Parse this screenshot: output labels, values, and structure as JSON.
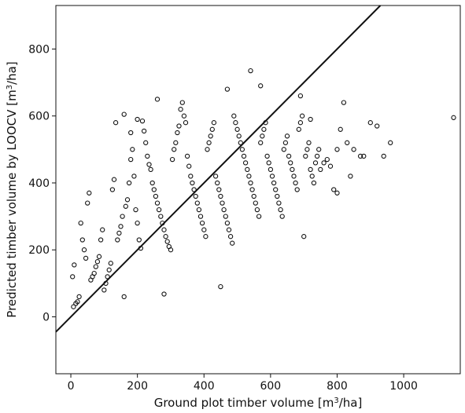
{
  "chart_data": {
    "type": "scatter",
    "xlabel": {
      "pre": "Ground plot timber volume [m",
      "sup": "3",
      "post": "/ha]"
    },
    "ylabel": {
      "pre": "Predicted timber volume by LOOCV [m",
      "sup": "3",
      "post": "/ha]"
    },
    "xlim": [
      -45,
      1170
    ],
    "ylim": [
      -170,
      930
    ],
    "xticks": [
      0,
      200,
      400,
      600,
      800,
      1000
    ],
    "yticks": [
      0,
      200,
      400,
      600,
      800
    ],
    "grid": false,
    "reference_line": {
      "x1": -45,
      "y1": -45,
      "x2": 930,
      "y2": 930
    },
    "points": [
      [
        5,
        120
      ],
      [
        10,
        155
      ],
      [
        8,
        30
      ],
      [
        15,
        40
      ],
      [
        20,
        45
      ],
      [
        25,
        60
      ],
      [
        30,
        280
      ],
      [
        35,
        230
      ],
      [
        40,
        200
      ],
      [
        45,
        175
      ],
      [
        50,
        340
      ],
      [
        55,
        370
      ],
      [
        60,
        110
      ],
      [
        65,
        120
      ],
      [
        70,
        130
      ],
      [
        75,
        150
      ],
      [
        80,
        165
      ],
      [
        85,
        180
      ],
      [
        90,
        230
      ],
      [
        95,
        260
      ],
      [
        100,
        80
      ],
      [
        105,
        100
      ],
      [
        110,
        120
      ],
      [
        115,
        140
      ],
      [
        120,
        160
      ],
      [
        125,
        380
      ],
      [
        130,
        410
      ],
      [
        135,
        580
      ],
      [
        140,
        230
      ],
      [
        145,
        250
      ],
      [
        150,
        270
      ],
      [
        155,
        300
      ],
      [
        160,
        60
      ],
      [
        165,
        330
      ],
      [
        170,
        350
      ],
      [
        175,
        400
      ],
      [
        180,
        470
      ],
      [
        185,
        500
      ],
      [
        190,
        420
      ],
      [
        195,
        320
      ],
      [
        200,
        280
      ],
      [
        205,
        230
      ],
      [
        210,
        205
      ],
      [
        215,
        585
      ],
      [
        220,
        555
      ],
      [
        225,
        520
      ],
      [
        230,
        480
      ],
      [
        235,
        455
      ],
      [
        240,
        440
      ],
      [
        245,
        400
      ],
      [
        250,
        380
      ],
      [
        255,
        360
      ],
      [
        260,
        340
      ],
      [
        265,
        320
      ],
      [
        270,
        300
      ],
      [
        275,
        280
      ],
      [
        280,
        260
      ],
      [
        285,
        240
      ],
      [
        290,
        225
      ],
      [
        295,
        210
      ],
      [
        300,
        200
      ],
      [
        305,
        470
      ],
      [
        310,
        500
      ],
      [
        315,
        520
      ],
      [
        320,
        550
      ],
      [
        325,
        570
      ],
      [
        330,
        620
      ],
      [
        335,
        640
      ],
      [
        340,
        600
      ],
      [
        345,
        580
      ],
      [
        350,
        480
      ],
      [
        355,
        450
      ],
      [
        360,
        420
      ],
      [
        365,
        400
      ],
      [
        370,
        380
      ],
      [
        375,
        360
      ],
      [
        380,
        340
      ],
      [
        385,
        320
      ],
      [
        390,
        300
      ],
      [
        395,
        280
      ],
      [
        400,
        260
      ],
      [
        405,
        240
      ],
      [
        410,
        500
      ],
      [
        415,
        520
      ],
      [
        420,
        540
      ],
      [
        425,
        560
      ],
      [
        430,
        580
      ],
      [
        435,
        420
      ],
      [
        440,
        400
      ],
      [
        445,
        380
      ],
      [
        450,
        360
      ],
      [
        455,
        340
      ],
      [
        460,
        320
      ],
      [
        465,
        300
      ],
      [
        470,
        280
      ],
      [
        475,
        260
      ],
      [
        480,
        240
      ],
      [
        485,
        220
      ],
      [
        490,
        600
      ],
      [
        495,
        580
      ],
      [
        500,
        560
      ],
      [
        505,
        540
      ],
      [
        510,
        520
      ],
      [
        515,
        500
      ],
      [
        520,
        480
      ],
      [
        525,
        460
      ],
      [
        530,
        440
      ],
      [
        535,
        420
      ],
      [
        540,
        400
      ],
      [
        545,
        380
      ],
      [
        550,
        360
      ],
      [
        555,
        340
      ],
      [
        560,
        320
      ],
      [
        565,
        300
      ],
      [
        570,
        520
      ],
      [
        575,
        540
      ],
      [
        580,
        560
      ],
      [
        585,
        580
      ],
      [
        590,
        480
      ],
      [
        595,
        460
      ],
      [
        600,
        440
      ],
      [
        605,
        420
      ],
      [
        610,
        400
      ],
      [
        615,
        380
      ],
      [
        620,
        360
      ],
      [
        625,
        340
      ],
      [
        630,
        320
      ],
      [
        635,
        300
      ],
      [
        640,
        500
      ],
      [
        645,
        520
      ],
      [
        650,
        540
      ],
      [
        655,
        480
      ],
      [
        660,
        460
      ],
      [
        665,
        440
      ],
      [
        670,
        420
      ],
      [
        675,
        400
      ],
      [
        680,
        380
      ],
      [
        685,
        560
      ],
      [
        690,
        580
      ],
      [
        695,
        600
      ],
      [
        700,
        240
      ],
      [
        705,
        480
      ],
      [
        710,
        500
      ],
      [
        715,
        520
      ],
      [
        720,
        440
      ],
      [
        725,
        420
      ],
      [
        730,
        400
      ],
      [
        735,
        460
      ],
      [
        740,
        480
      ],
      [
        745,
        500
      ],
      [
        750,
        440
      ],
      [
        760,
        460
      ],
      [
        770,
        470
      ],
      [
        780,
        450
      ],
      [
        790,
        380
      ],
      [
        800,
        370
      ],
      [
        810,
        560
      ],
      [
        820,
        640
      ],
      [
        830,
        520
      ],
      [
        840,
        420
      ],
      [
        850,
        500
      ],
      [
        870,
        480
      ],
      [
        900,
        580
      ],
      [
        920,
        570
      ],
      [
        940,
        480
      ],
      [
        960,
        520
      ],
      [
        1150,
        595
      ],
      [
        160,
        605
      ],
      [
        200,
        590
      ],
      [
        180,
        550
      ],
      [
        260,
        650
      ],
      [
        280,
        68
      ],
      [
        450,
        90
      ],
      [
        470,
        680
      ],
      [
        540,
        735
      ],
      [
        570,
        690
      ],
      [
        690,
        660
      ],
      [
        720,
        590
      ],
      [
        800,
        500
      ],
      [
        880,
        480
      ]
    ]
  }
}
